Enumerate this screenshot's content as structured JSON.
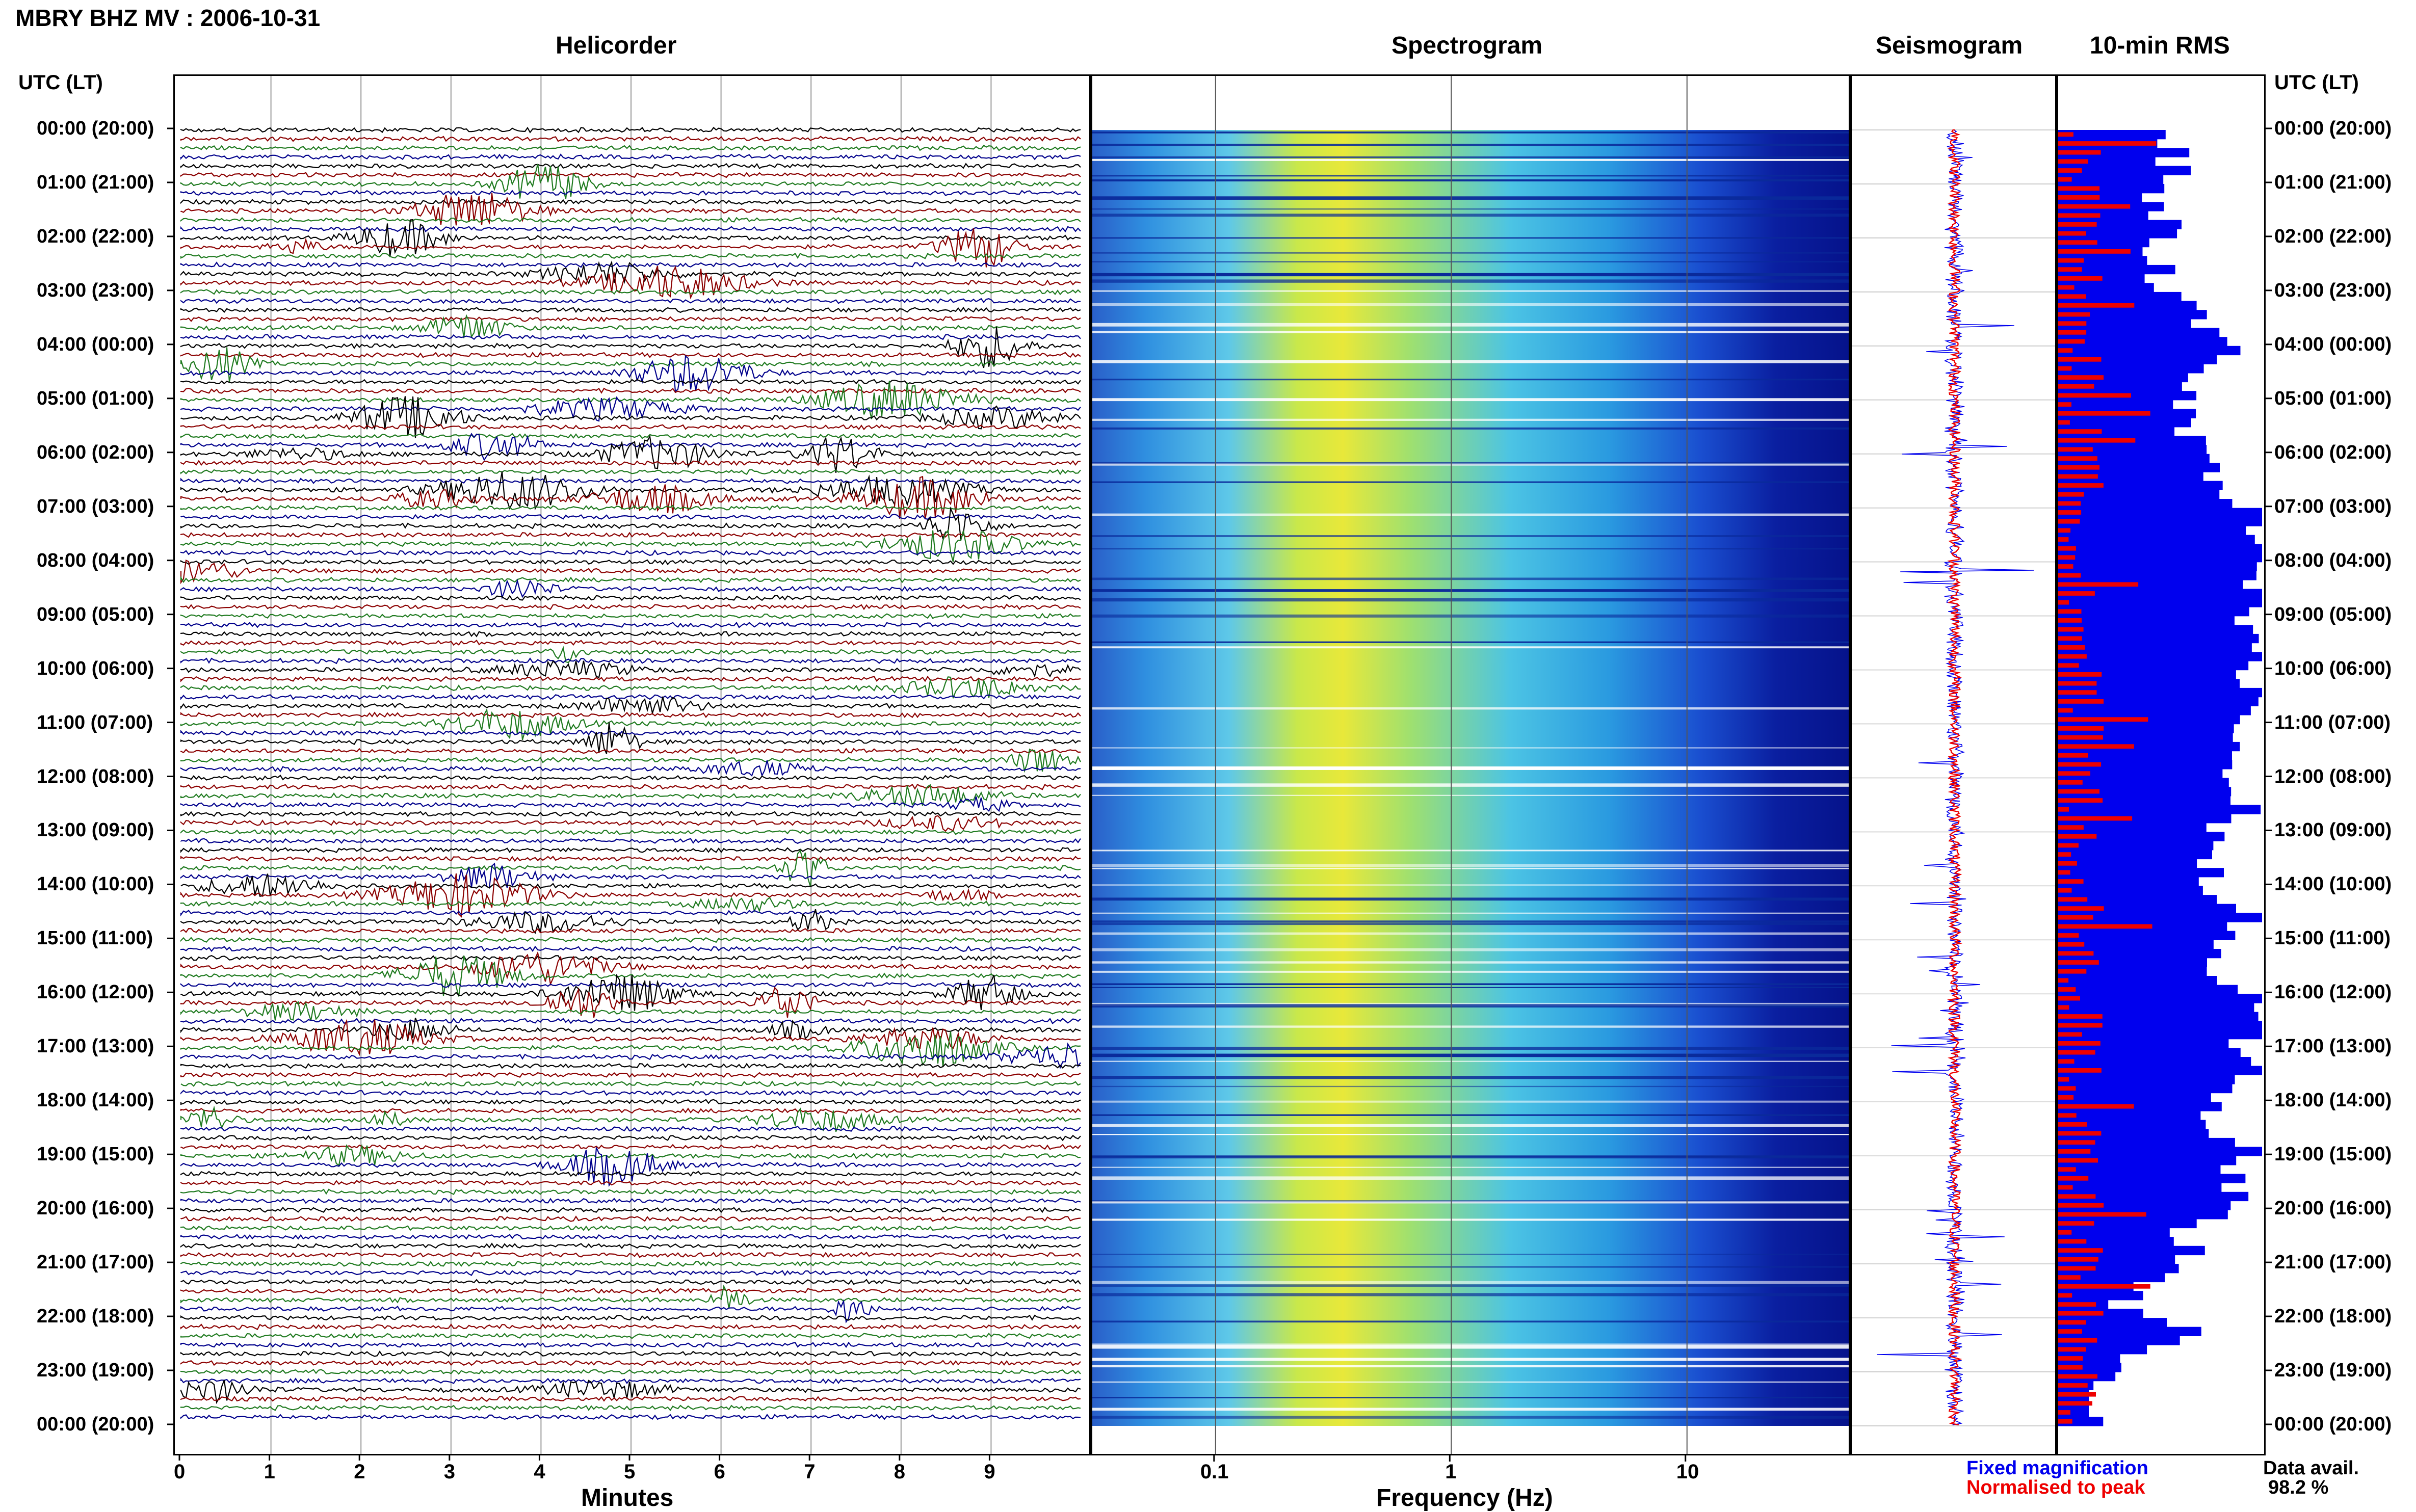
{
  "title": "MBRY BHZ MV : 2006-10-31",
  "panels": {
    "helicorder": "Helicorder",
    "spectrogram": "Spectrogram",
    "seismogram": "Seismogram",
    "rms": "10-min RMS"
  },
  "time_axis_header": "UTC (LT)",
  "time_labels": [
    "00:00 (20:00)",
    "01:00 (21:00)",
    "02:00 (22:00)",
    "03:00 (23:00)",
    "04:00 (00:00)",
    "05:00 (01:00)",
    "06:00 (02:00)",
    "07:00 (03:00)",
    "08:00 (04:00)",
    "09:00 (05:00)",
    "10:00 (06:00)",
    "11:00 (07:00)",
    "12:00 (08:00)",
    "13:00 (09:00)",
    "14:00 (10:00)",
    "15:00 (11:00)",
    "16:00 (12:00)",
    "17:00 (13:00)",
    "18:00 (14:00)",
    "19:00 (15:00)",
    "20:00 (16:00)",
    "21:00 (17:00)",
    "22:00 (18:00)",
    "23:00 (19:00)",
    "00:00 (20:00)"
  ],
  "helicorder_x_ticks": [
    "0",
    "1",
    "2",
    "3",
    "4",
    "5",
    "6",
    "7",
    "8",
    "9"
  ],
  "helicorder_xlabel": "Minutes",
  "spectrogram_x_ticks": [
    "0.1",
    "1",
    "10"
  ],
  "spectrogram_xlabel": "Frequency (Hz)",
  "legend": {
    "fixed": "Fixed magnification",
    "normalised": "Normalised to peak",
    "fixed_color": "#0000ee",
    "normalised_color": "#ee0000"
  },
  "data_avail": {
    "label": "Data avail.",
    "value": "98.2 %"
  },
  "trace_colors": [
    "#000000",
    "#8b0000",
    "#1f7a1f",
    "#00008b"
  ],
  "chart_data": [
    {
      "type": "line",
      "title": "Helicorder",
      "xlabel": "Minutes",
      "xlim": [
        0,
        10
      ],
      "rows": 144,
      "ylabel": "UTC (LT)",
      "series_colors": [
        "black",
        "dark red",
        "green",
        "dark blue"
      ]
    },
    {
      "type": "heatmap",
      "title": "Spectrogram",
      "xlabel": "Frequency (Hz)",
      "x_scale": "log",
      "xlim": [
        0.03,
        50
      ],
      "x_ticks": [
        0.1,
        1,
        10
      ]
    },
    {
      "type": "line",
      "title": "Seismogram",
      "series": [
        {
          "name": "Fixed magnification"
        },
        {
          "name": "Normalised to peak"
        }
      ]
    },
    {
      "type": "bar",
      "title": "10-min RMS",
      "orientation": "horizontal",
      "rows": 144,
      "series": [
        {
          "name": "Fixed magnification"
        },
        {
          "name": "Normalised to peak"
        }
      ]
    }
  ]
}
